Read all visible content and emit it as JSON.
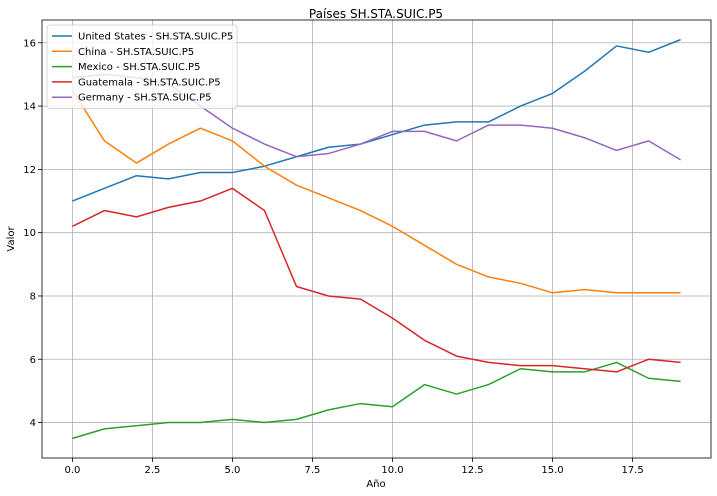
{
  "chart_data": {
    "type": "line",
    "title": "Países SH.STA.SUIC.P5",
    "xlabel": "Año",
    "ylabel": "Valor",
    "xlim": [
      -0.95,
      19.95
    ],
    "ylim": [
      2.88,
      16.72
    ],
    "xticks": [
      0,
      2.5,
      5,
      7.5,
      10,
      12.5,
      15,
      17.5
    ],
    "xtick_labels": [
      "0.0",
      "2.5",
      "5.0",
      "7.5",
      "10.0",
      "12.5",
      "15.0",
      "17.5"
    ],
    "yticks": [
      4,
      6,
      8,
      10,
      12,
      14,
      16
    ],
    "ytick_labels": [
      "4",
      "6",
      "8",
      "10",
      "12",
      "14",
      "16"
    ],
    "grid": true,
    "legend_position": "top-left",
    "x": [
      0,
      1,
      2,
      3,
      4,
      5,
      6,
      7,
      8,
      9,
      10,
      11,
      12,
      13,
      14,
      15,
      16,
      17,
      18,
      19
    ],
    "series": [
      {
        "name": "United States - SH.STA.SUIC.P5",
        "color": "#1f77b4",
        "values": [
          11.0,
          11.4,
          11.8,
          11.7,
          11.9,
          11.9,
          12.1,
          12.4,
          12.7,
          12.8,
          13.1,
          13.4,
          13.5,
          13.5,
          14.0,
          14.4,
          15.1,
          15.9,
          15.7,
          16.1
        ]
      },
      {
        "name": "China - SH.STA.SUIC.P5",
        "color": "#ff7f0e",
        "values": [
          14.5,
          12.9,
          12.2,
          12.8,
          13.3,
          12.9,
          12.1,
          11.5,
          11.1,
          10.7,
          10.2,
          9.6,
          9.0,
          8.6,
          8.4,
          8.1,
          8.2,
          8.1,
          8.1,
          8.1
        ]
      },
      {
        "name": "Mexico - SH.STA.SUIC.P5",
        "color": "#2ca02c",
        "values": [
          3.5,
          3.8,
          3.9,
          4.0,
          4.0,
          4.1,
          4.0,
          4.1,
          4.4,
          4.6,
          4.5,
          5.2,
          4.9,
          5.2,
          5.7,
          5.6,
          5.6,
          5.9,
          5.4,
          5.3
        ]
      },
      {
        "name": "Guatemala - SH.STA.SUIC.P5",
        "color": "#d62728",
        "values": [
          10.2,
          10.7,
          10.5,
          10.8,
          11.0,
          11.4,
          10.7,
          8.3,
          8.0,
          7.9,
          7.3,
          6.6,
          6.1,
          5.9,
          5.8,
          5.8,
          5.7,
          5.6,
          6.0,
          5.9
        ]
      },
      {
        "name": "Germany - SH.STA.SUIC.P5",
        "color": "#9467bd",
        "values": [
          14.9,
          15.0,
          14.9,
          14.7,
          14.0,
          13.3,
          12.8,
          12.4,
          12.5,
          12.8,
          13.2,
          13.2,
          12.9,
          13.4,
          13.4,
          13.3,
          13.0,
          12.6,
          12.9,
          12.3
        ]
      }
    ]
  }
}
